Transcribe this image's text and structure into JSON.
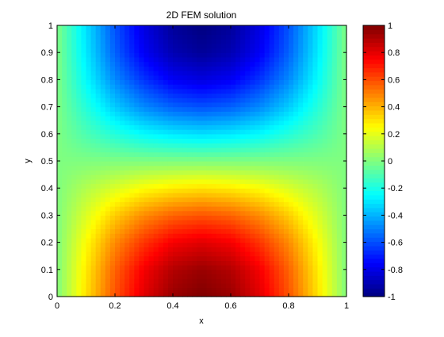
{
  "chart_data": {
    "type": "heatmap",
    "title": "2D FEM solution",
    "xlabel": "x",
    "ylabel": "y",
    "xlim": [
      0,
      1
    ],
    "ylim": [
      0,
      1
    ],
    "xticks": [
      "0",
      "0.2",
      "0.4",
      "0.6",
      "0.8",
      "1"
    ],
    "yticks": [
      "0",
      "0.1",
      "0.2",
      "0.3",
      "0.4",
      "0.5",
      "0.6",
      "0.7",
      "0.8",
      "0.9",
      "1"
    ],
    "field": {
      "x": [
        0,
        0.1,
        0.2,
        0.3,
        0.4,
        0.5,
        0.6,
        0.7,
        0.8,
        0.9,
        1
      ],
      "y": [
        0,
        0.1,
        0.2,
        0.3,
        0.4,
        0.5,
        0.6,
        0.7,
        0.8,
        0.9,
        1
      ],
      "values": [
        [
          0.0,
          0.31,
          0.59,
          0.81,
          0.95,
          1.0,
          0.95,
          0.81,
          0.59,
          0.31,
          0.0
        ],
        [
          0.0,
          0.29,
          0.56,
          0.77,
          0.9,
          0.95,
          0.9,
          0.77,
          0.56,
          0.29,
          0.0
        ],
        [
          0.0,
          0.25,
          0.48,
          0.65,
          0.77,
          0.81,
          0.77,
          0.65,
          0.48,
          0.25,
          0.0
        ],
        [
          0.0,
          0.18,
          0.35,
          0.48,
          0.56,
          0.59,
          0.56,
          0.48,
          0.35,
          0.18,
          0.0
        ],
        [
          0.0,
          0.1,
          0.18,
          0.25,
          0.29,
          0.31,
          0.29,
          0.25,
          0.18,
          0.1,
          0.0
        ],
        [
          0.0,
          0.0,
          0.0,
          0.0,
          0.0,
          0.0,
          0.0,
          0.0,
          0.0,
          0.0,
          0.0
        ],
        [
          0.0,
          -0.1,
          -0.18,
          -0.25,
          -0.29,
          -0.31,
          -0.29,
          -0.25,
          -0.18,
          -0.1,
          0.0
        ],
        [
          0.0,
          -0.18,
          -0.35,
          -0.48,
          -0.56,
          -0.59,
          -0.56,
          -0.48,
          -0.35,
          -0.18,
          0.0
        ],
        [
          0.0,
          -0.25,
          -0.48,
          -0.65,
          -0.77,
          -0.81,
          -0.77,
          -0.65,
          -0.48,
          -0.25,
          0.0
        ],
        [
          0.0,
          -0.29,
          -0.56,
          -0.77,
          -0.9,
          -0.95,
          -0.9,
          -0.77,
          -0.56,
          -0.29,
          0.0
        ],
        [
          0.0,
          -0.31,
          -0.59,
          -0.81,
          -0.95,
          -1.0,
          -0.95,
          -0.81,
          -0.59,
          -0.31,
          0.0
        ]
      ]
    },
    "colorbar": {
      "colormap": "jet",
      "clim": [
        -1,
        1
      ],
      "ticks": [
        "1",
        "0.8",
        "0.6",
        "0.4",
        "0.2",
        "0",
        "-0.2",
        "-0.4",
        "-0.6",
        "-0.8",
        "-1"
      ]
    },
    "grid": false,
    "colors": {
      "axes": "#000000",
      "background": "#ffffff"
    }
  }
}
